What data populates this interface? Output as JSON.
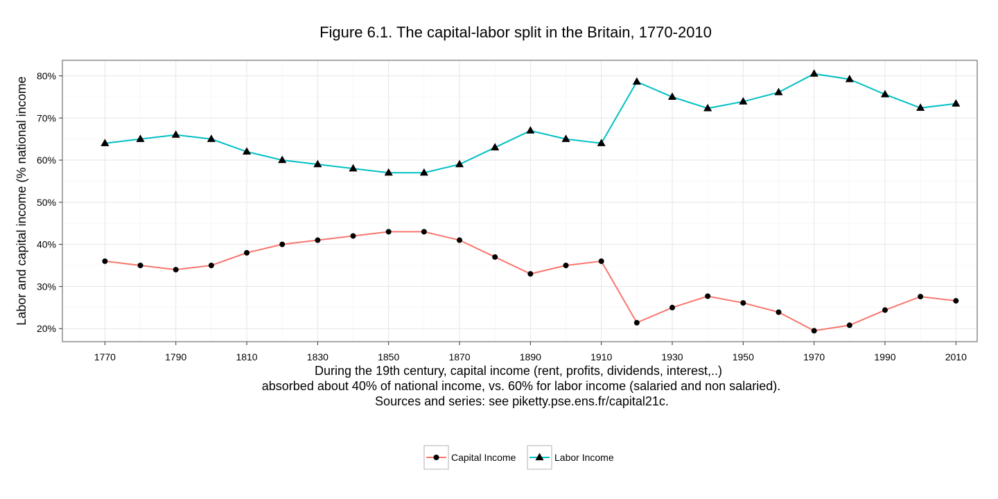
{
  "chart_data": {
    "type": "line",
    "title": "Figure 6.1. The capital-labor split in the Britain, 1770-2010",
    "ylabel": "Labor and capital income (% national income",
    "xlabel_lines": [
      "During the 19th century, capital income (rent, profits, dividends, interest,..)",
      "absorbed about 40% of national income, vs. 60% for labor income (salaried and non salaried).",
      "Sources and series: see piketty.pse.ens.fr/capital21c."
    ],
    "x": [
      1770,
      1780,
      1790,
      1800,
      1810,
      1820,
      1830,
      1840,
      1850,
      1860,
      1870,
      1880,
      1890,
      1900,
      1910,
      1920,
      1930,
      1940,
      1950,
      1960,
      1970,
      1980,
      1990,
      2000,
      2010
    ],
    "x_ticks": [
      1770,
      1790,
      1810,
      1830,
      1850,
      1870,
      1890,
      1910,
      1930,
      1950,
      1970,
      1990,
      2010
    ],
    "x_tick_labels": [
      "1770",
      "1790",
      "1810",
      "1830",
      "1850",
      "1870",
      "1890",
      "1910",
      "1930",
      "1950",
      "1970",
      "1990",
      "2010"
    ],
    "xlim": [
      1758,
      2016
    ],
    "y_ticks": [
      20,
      30,
      40,
      50,
      60,
      70,
      80
    ],
    "y_tick_labels": [
      "20%",
      "30%",
      "40%",
      "50%",
      "60%",
      "70%",
      "80%"
    ],
    "ylim": [
      16.9,
      83.7
    ],
    "grid": true,
    "legend_position": "bottom",
    "series": [
      {
        "name": "Capital Income",
        "color": "#F8766D",
        "marker": "circle",
        "values": [
          36,
          35,
          34,
          35,
          38,
          40,
          41,
          42,
          43,
          43,
          41,
          37,
          33,
          35,
          36,
          21.4,
          25,
          27.7,
          26.1,
          23.9,
          19.5,
          20.8,
          24.4,
          27.6,
          26.6
        ]
      },
      {
        "name": "Labor Income",
        "color": "#00BFC4",
        "marker": "triangle",
        "values": [
          64,
          65,
          66,
          65,
          62,
          60,
          59,
          58,
          57,
          57,
          59,
          63,
          67,
          65,
          64,
          78.6,
          75,
          72.3,
          73.9,
          76.1,
          80.5,
          79.2,
          75.6,
          72.4,
          73.4
        ]
      }
    ]
  }
}
